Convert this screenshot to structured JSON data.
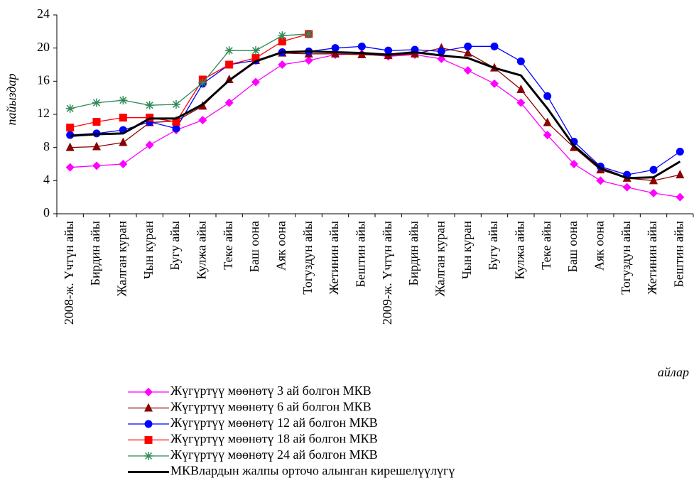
{
  "chart_data": {
    "type": "line",
    "y_label": "пайыздар",
    "x_label": "айлар",
    "categories": [
      "2008-ж. Үчтүн айы",
      "Бирдин айы",
      "Жалган куран",
      "Чын куран",
      "Бугу айы",
      "Кулжа айы",
      "Теке айы",
      "Баш оона",
      "Аяк оона",
      "Тогуздун айы",
      "Жетинин айы",
      "Бештин айы",
      "2009-ж. Үчтүн айы",
      "Бирдин айы",
      "Жалган куран",
      "Чын куран",
      "Бугу айы",
      "Кулжа айы",
      "Теке айы",
      "Баш оона",
      "Аяк оона",
      "Тогуздун айы",
      "Жетинин айы",
      "Бештин айы"
    ],
    "ylim": [
      0,
      24
    ],
    "yticks": [
      0,
      4,
      8,
      12,
      16,
      20,
      24
    ],
    "series": [
      {
        "name": "Жүгүртүү мөөнөтү 3 ай болгон МКВ",
        "color": "#ff00ff",
        "marker": "diamond",
        "values": [
          5.6,
          5.8,
          6.0,
          8.3,
          10.1,
          11.3,
          13.4,
          15.9,
          18.0,
          18.5,
          19.2,
          19.3,
          19.0,
          19.2,
          18.7,
          17.3,
          15.7,
          13.4,
          9.5,
          6.0,
          4.0,
          3.2,
          2.5,
          2.0
        ]
      },
      {
        "name": "Жүгүртүү мөөнөтү 6 ай болгон МКВ",
        "color": "#8b0000",
        "marker": "triangle",
        "values": [
          8.0,
          8.1,
          8.6,
          11.0,
          11.2,
          13.0,
          16.2,
          18.5,
          19.4,
          19.3,
          19.3,
          19.2,
          19.1,
          19.3,
          20.0,
          19.4,
          17.6,
          15.0,
          11.0,
          8.0,
          5.3,
          4.3,
          4.0,
          4.7
        ]
      },
      {
        "name": "Жүгүртүү мөөнөтү 12 ай болгон МКВ",
        "color": "#0000ff",
        "marker": "circle",
        "values": [
          9.5,
          9.7,
          10.1,
          11.1,
          10.3,
          15.7,
          18.0,
          18.5,
          19.5,
          19.6,
          20.0,
          20.2,
          19.7,
          19.8,
          19.6,
          20.2,
          20.2,
          18.4,
          14.2,
          8.7,
          5.7,
          4.7,
          5.3,
          7.5
        ]
      },
      {
        "name": "Жүгүртүү мөөнөтү 18 ай болгон МКВ",
        "color": "#ff0000",
        "marker": "square",
        "values": [
          10.4,
          11.1,
          11.6,
          11.6,
          11.1,
          16.2,
          18.0,
          18.8,
          20.8,
          21.7,
          null,
          null,
          null,
          null,
          null,
          null,
          null,
          null,
          null,
          null,
          null,
          null,
          null,
          null
        ]
      },
      {
        "name": "Жүгүртүү мөөнөтү 24 ай болгон МКВ",
        "color": "#2e8b57",
        "marker": "star",
        "values": [
          12.7,
          13.4,
          13.7,
          13.1,
          13.2,
          15.8,
          19.7,
          19.7,
          21.5,
          21.7,
          null,
          null,
          null,
          null,
          null,
          null,
          null,
          null,
          null,
          null,
          null,
          null,
          null,
          null
        ]
      },
      {
        "name": "МКВлардын жалпы орточо алынган кирешелүүлүгү",
        "color": "#000000",
        "marker": "none",
        "width": 3,
        "values": [
          9.4,
          9.6,
          9.7,
          11.5,
          11.5,
          13.2,
          16.1,
          18.4,
          19.5,
          19.6,
          19.5,
          19.4,
          19.2,
          19.5,
          19.1,
          18.8,
          17.6,
          16.7,
          12.7,
          8.2,
          5.5,
          4.3,
          4.4,
          6.3
        ]
      }
    ]
  }
}
